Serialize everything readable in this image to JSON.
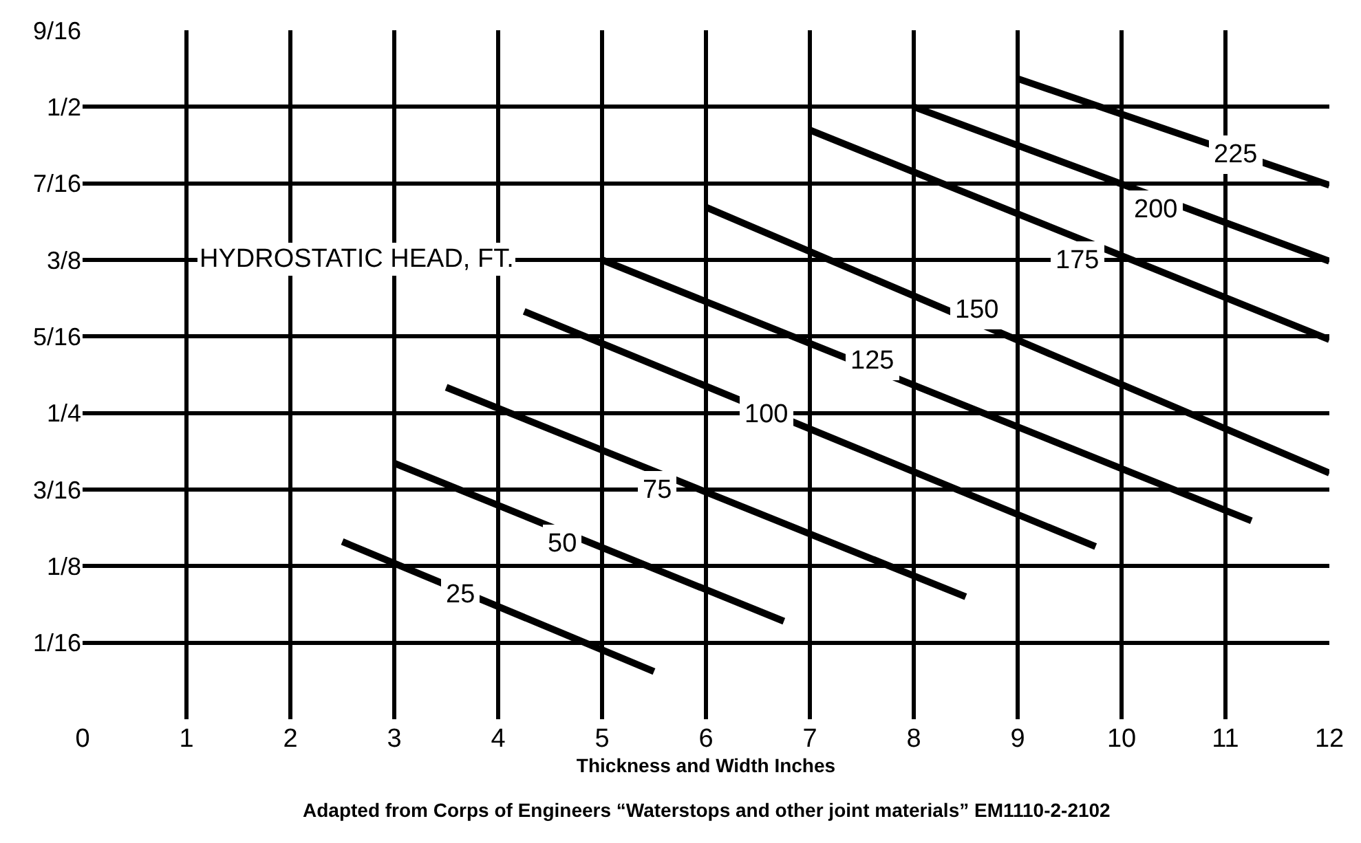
{
  "chart_data": {
    "type": "line",
    "xlabel": "Thickness and Width Inches",
    "xlim": [
      0,
      12
    ],
    "xticks": [
      0,
      1,
      2,
      3,
      4,
      5,
      6,
      7,
      8,
      9,
      10,
      11,
      12
    ],
    "ylim": [
      0,
      0.5625
    ],
    "yticks": [
      {
        "value": 0.0625,
        "label": "1/16"
      },
      {
        "value": 0.125,
        "label": "1/8"
      },
      {
        "value": 0.1875,
        "label": "3/16"
      },
      {
        "value": 0.25,
        "label": "1/4"
      },
      {
        "value": 0.3125,
        "label": "5/16"
      },
      {
        "value": 0.375,
        "label": "3/8"
      },
      {
        "value": 0.4375,
        "label": "7/16"
      },
      {
        "value": 0.5,
        "label": "1/2"
      },
      {
        "value": 0.5625,
        "label": "9/16"
      }
    ],
    "grid": true,
    "marker": "none",
    "line_style": "solid",
    "series": [
      {
        "color": "#000000",
        "x": [
          2.5,
          5.5
        ],
        "values": [
          0.145,
          0.039
        ]
      },
      {
        "color": "#000000",
        "x": [
          3.0,
          6.75
        ],
        "values": [
          0.209,
          0.08
        ]
      },
      {
        "color": "#000000",
        "x": [
          3.5,
          8.5
        ],
        "values": [
          0.271,
          0.1
        ]
      },
      {
        "color": "#000000",
        "x": [
          4.25,
          9.75
        ],
        "values": [
          0.333,
          0.141
        ]
      },
      {
        "color": "#000000",
        "x": [
          5.0,
          11.25
        ],
        "values": [
          0.375,
          0.162
        ]
      },
      {
        "color": "#000000",
        "x": [
          6.0,
          12.0
        ],
        "values": [
          0.418,
          0.201
        ]
      },
      {
        "color": "#000000",
        "x": [
          7.0,
          12.0
        ],
        "values": [
          0.481,
          0.31
        ]
      },
      {
        "color": "#000000",
        "x": [
          8.0,
          12.0
        ],
        "values": [
          0.5,
          0.374
        ]
      },
      {
        "color": "#000000",
        "x": [
          9.0,
          12.0
        ],
        "values": [
          0.523,
          0.436
        ]
      }
    ],
    "annotations": [
      "HYDROSTATIC HEAD, FT.",
      "Adapted from Corps of Engineers “Waterstops and other joint materials” EM1110-2-2102",
      {
        "text": "25",
        "x": 3.63,
        "y": 0.102
      },
      {
        "text": "50",
        "x": 4.62,
        "y": 0.143
      },
      {
        "text": "75",
        "x": 5.53,
        "y": 0.1875
      },
      {
        "text": "100",
        "x": 6.58,
        "y": 0.249
      },
      {
        "text": "125",
        "x": 7.6,
        "y": 0.293
      },
      {
        "text": "150",
        "x": 8.61,
        "y": 0.334
      },
      {
        "text": "175",
        "x": 9.58,
        "y": 0.374
      },
      {
        "text": "200",
        "x": 10.33,
        "y": 0.416
      },
      {
        "text": "225",
        "x": 11.1,
        "y": 0.461
      }
    ]
  }
}
